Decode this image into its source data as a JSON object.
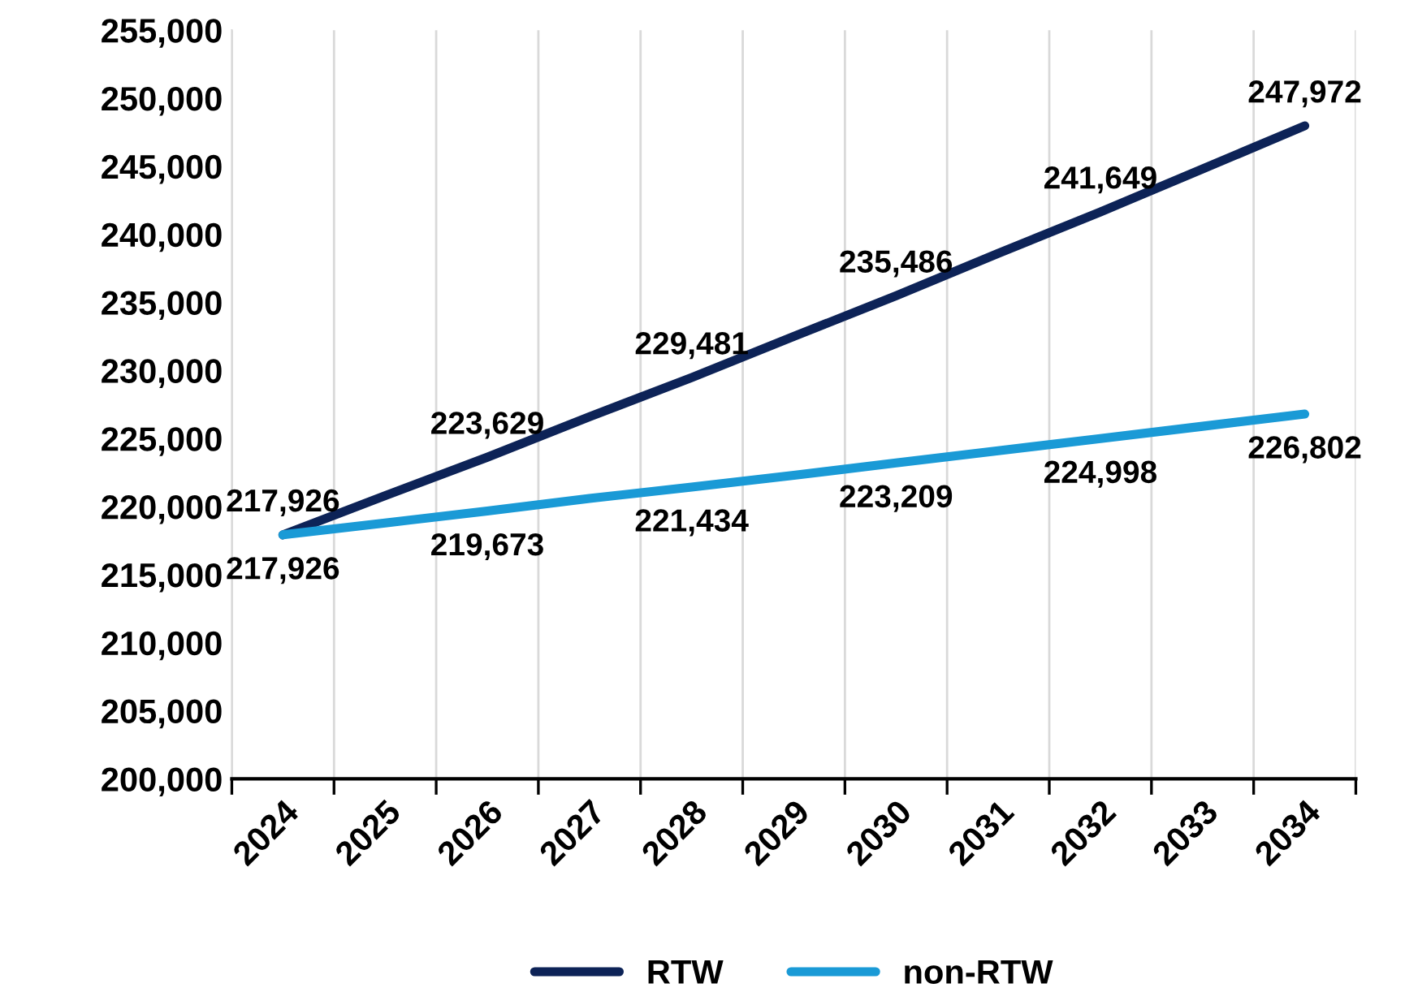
{
  "chart_data": {
    "type": "line",
    "categories": [
      "2024",
      "2025",
      "2026",
      "2027",
      "2028",
      "2029",
      "2030",
      "2031",
      "2032",
      "2033",
      "2034"
    ],
    "series": [
      {
        "name": "RTW",
        "color": "#0d2357",
        "values": [
          217926,
          220800,
          223629,
          226600,
          229481,
          232500,
          235486,
          238600,
          241649,
          244800,
          247972
        ],
        "value_labels": [
          "217,926",
          null,
          "223,629",
          null,
          "229,481",
          null,
          "235,486",
          null,
          "241,649",
          null,
          "247,972"
        ]
      },
      {
        "name": "non-RTW",
        "color": "#1a9ad6",
        "values": [
          217926,
          218800,
          219673,
          220600,
          221434,
          222300,
          223209,
          224100,
          224998,
          225900,
          226802
        ],
        "value_labels": [
          "217,926",
          null,
          "219,673",
          null,
          "221,434",
          null,
          "223,209",
          null,
          "224,998",
          null,
          "226,802"
        ]
      }
    ],
    "ylim": [
      200000,
      255000
    ],
    "yticks": [
      {
        "value": 200000,
        "label": "200,000"
      },
      {
        "value": 205000,
        "label": "205,000"
      },
      {
        "value": 210000,
        "label": "210,000"
      },
      {
        "value": 215000,
        "label": "215,000"
      },
      {
        "value": 220000,
        "label": "220,000"
      },
      {
        "value": 225000,
        "label": "225,000"
      },
      {
        "value": 230000,
        "label": "230,000"
      },
      {
        "value": 235000,
        "label": "235,000"
      },
      {
        "value": 240000,
        "label": "240,000"
      },
      {
        "value": 245000,
        "label": "245,000"
      },
      {
        "value": 250000,
        "label": "250,000"
      },
      {
        "value": 255000,
        "label": "255,000"
      }
    ],
    "grid": "x",
    "legend": "bottom",
    "marker": "none",
    "line_style": "solid"
  }
}
